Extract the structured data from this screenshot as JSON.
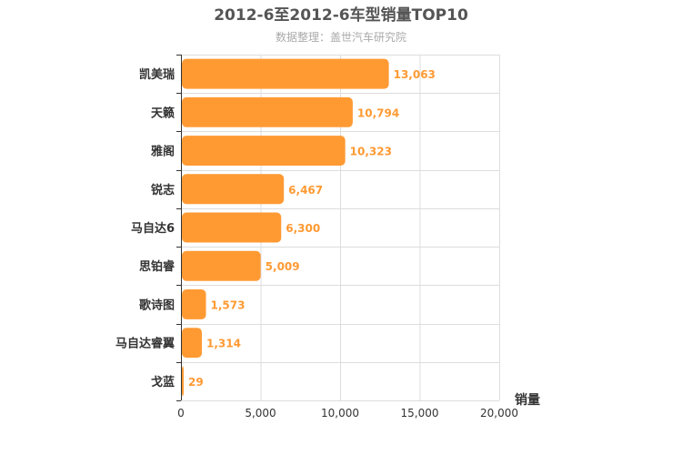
{
  "chart_data": {
    "type": "bar",
    "orientation": "horizontal",
    "title": "2012-6至2012-6车型销量TOP10",
    "subtitle": "数据整理：盖世汽车研究院",
    "xlabel": "销量",
    "ylabel": "",
    "categories": [
      "凯美瑞",
      "天籁",
      "雅阁",
      "锐志",
      "马自达6",
      "思铂睿",
      "歌诗图",
      "马自达睿翼",
      "戈蓝"
    ],
    "values": [
      13063,
      10794,
      10323,
      6467,
      6300,
      5009,
      1573,
      1314,
      29
    ],
    "data_labels": [
      "13,063",
      "10,794",
      "10,323",
      "6,467",
      "6,300",
      "5,009",
      "1,573",
      "1,314",
      "29"
    ],
    "xlim": [
      0,
      20000
    ],
    "x_ticks": [
      0,
      5000,
      10000,
      15000,
      20000
    ],
    "x_tick_labels": [
      "0",
      "5,000",
      "10,000",
      "15,000",
      "20,000"
    ],
    "grid": true,
    "legend": "none",
    "bar_color": "#ff9a33",
    "label_color": "#ff9a33"
  }
}
